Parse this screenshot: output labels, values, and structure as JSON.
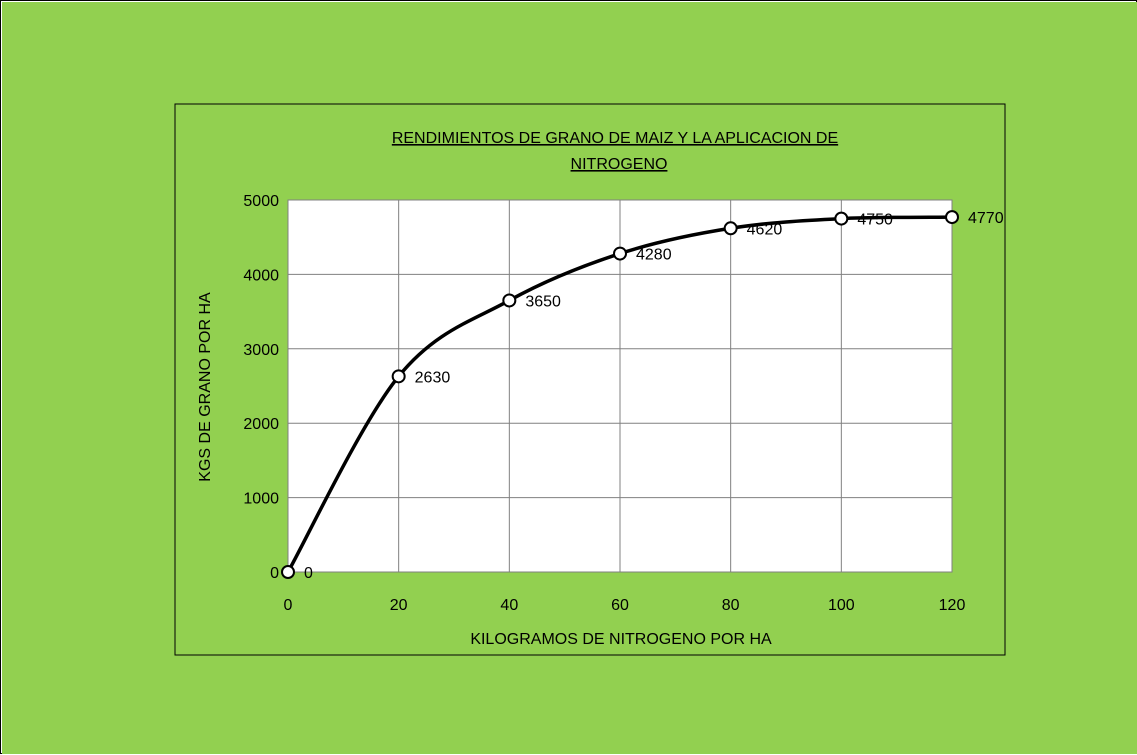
{
  "colors": {
    "background": "#92d050",
    "plot_area": "#ffffff",
    "line": "#000000",
    "grid": "#808080"
  },
  "chart_data": {
    "type": "line",
    "title_lines": [
      "RENDIMIENTOS DE GRANO DE MAIZ Y LA APLICACION DE",
      "NITROGENO"
    ],
    "xlabel": "KILOGRAMOS DE NITROGENO POR HA",
    "ylabel": "KGS DE GRANO POR HA",
    "x": [
      0,
      20,
      40,
      60,
      80,
      100,
      120
    ],
    "series": [
      {
        "values": [
          0,
          2630,
          3650,
          4280,
          4620,
          4750,
          4770
        ]
      }
    ],
    "data_labels": [
      "0",
      "2630",
      "3650",
      "4280",
      "4620",
      "4750",
      "4770"
    ],
    "xlim": [
      0,
      120
    ],
    "ylim": [
      0,
      5000
    ],
    "x_ticks": [
      "0",
      "20",
      "40",
      "60",
      "80",
      "100",
      "120"
    ],
    "y_ticks": [
      "0",
      "1000",
      "2000",
      "3000",
      "4000",
      "5000"
    ],
    "grid": true,
    "smooth": true,
    "marker": "open-circle",
    "legend": "none"
  }
}
